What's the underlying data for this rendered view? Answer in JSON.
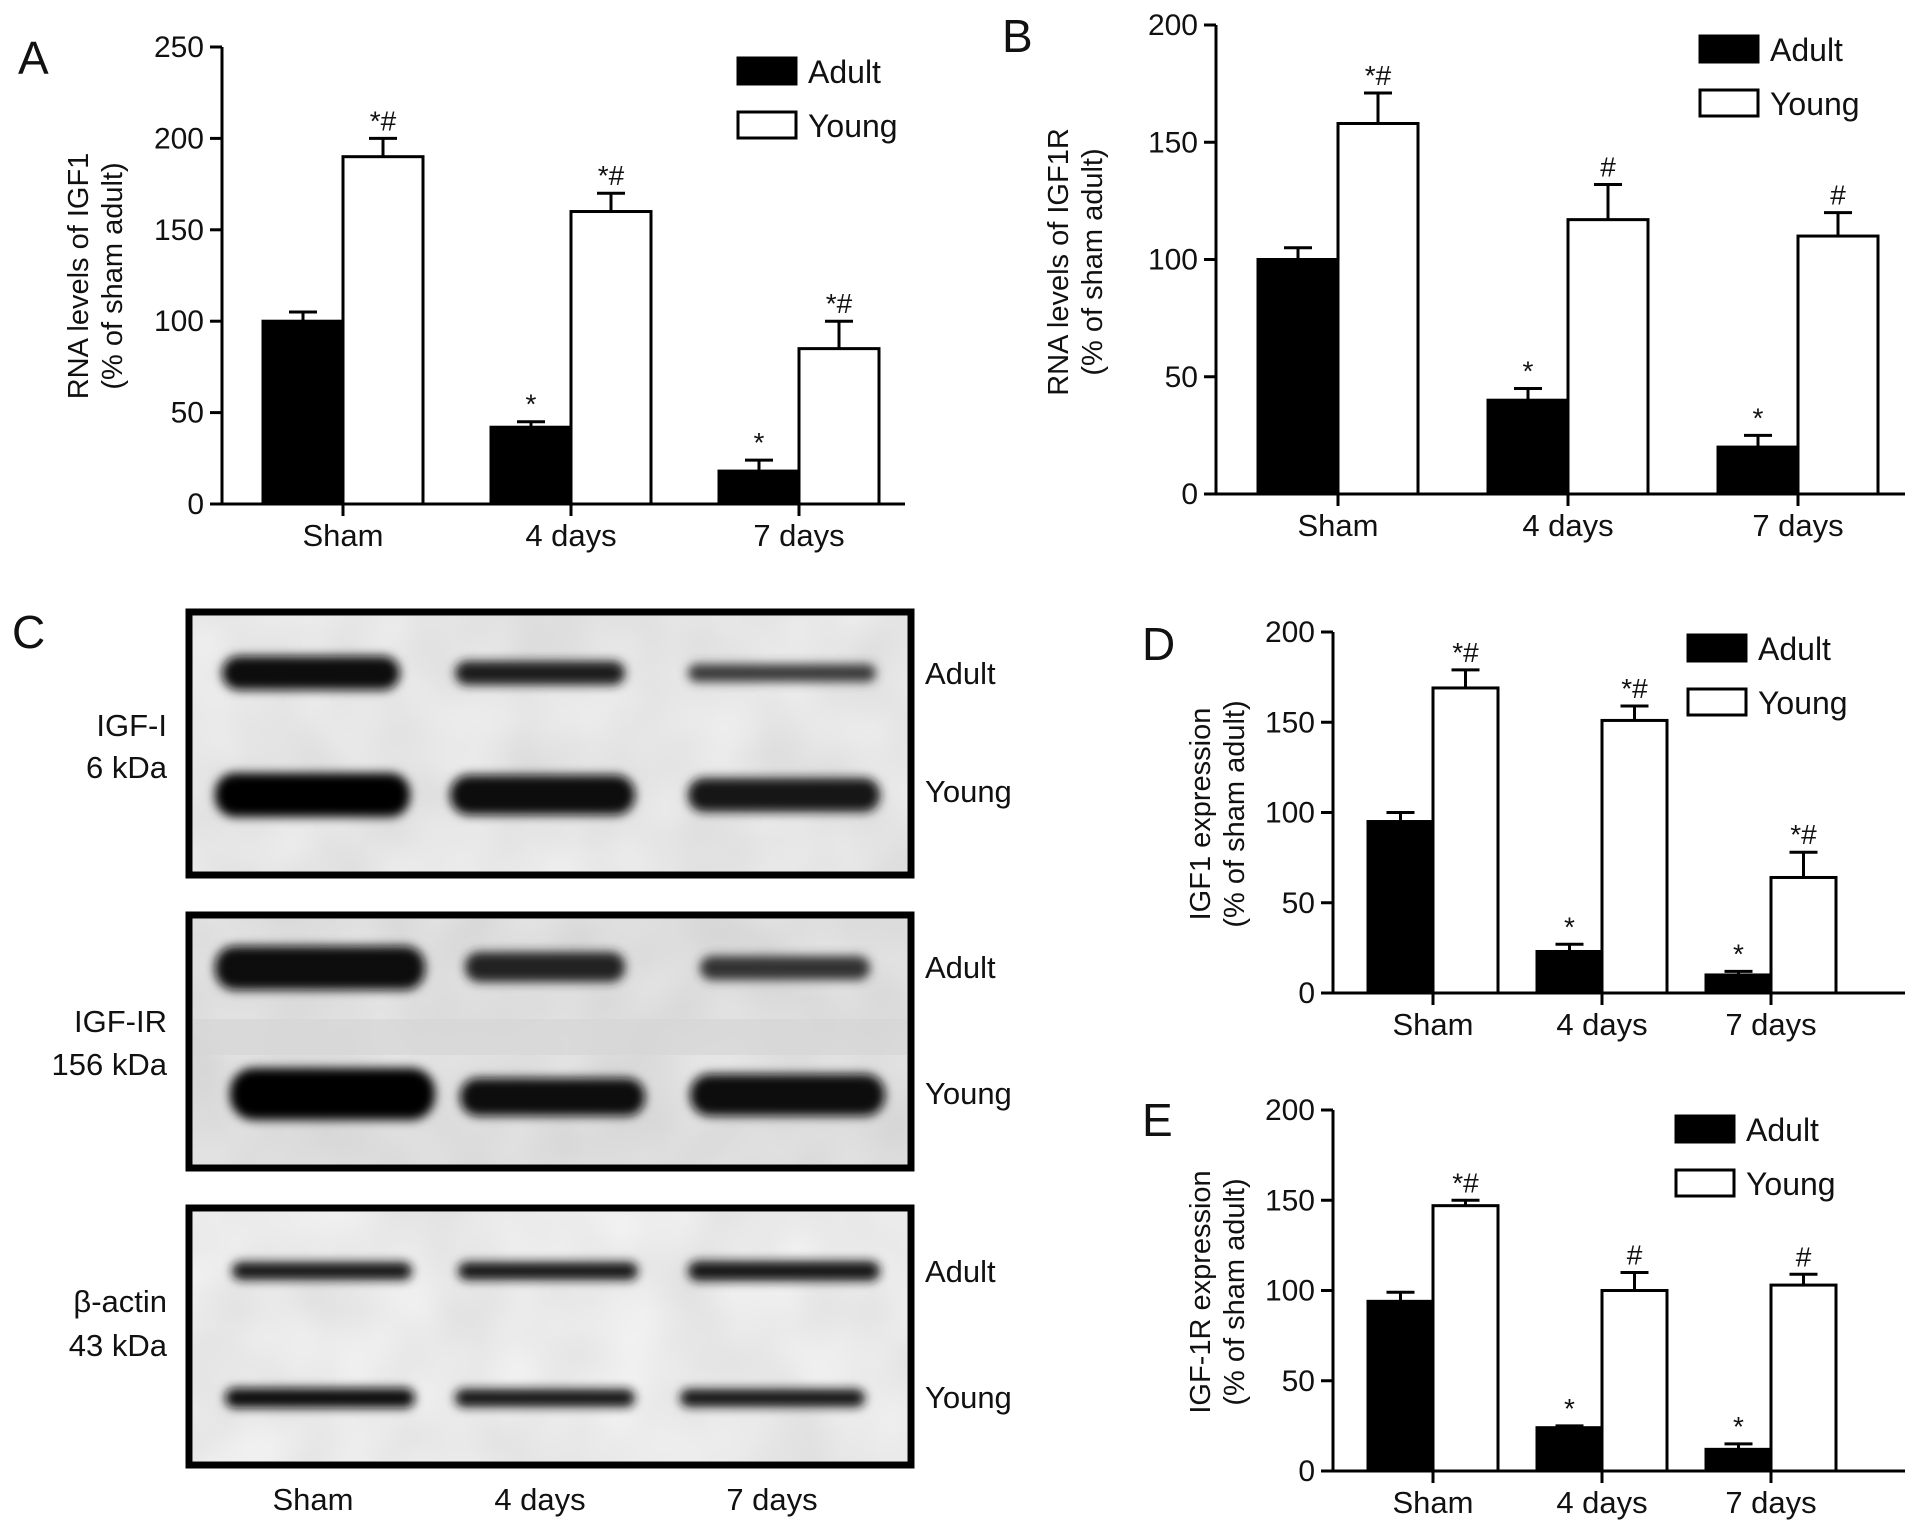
{
  "colors": {
    "adult": "#000000",
    "young": "#ffffff",
    "stroke": "#000000"
  },
  "panel_c": {
    "letter": "C",
    "groups": [
      "Sham",
      "4 days",
      "7 days"
    ],
    "blots": [
      {
        "protein": "IGF-I",
        "size": "6 kDa",
        "rows": [
          "Adult",
          "Young"
        ]
      },
      {
        "protein": "IGF-IR",
        "size": "156 kDa",
        "rows": [
          "Adult",
          "Young"
        ]
      },
      {
        "protein": "β-actin",
        "size": "43 kDa",
        "rows": [
          "Adult",
          "Young"
        ]
      }
    ]
  },
  "chart_data": [
    {
      "panel": "A",
      "type": "bar",
      "categories": [
        "Sham",
        "4 days",
        "7 days"
      ],
      "ylabel": [
        "RNA levels of IGF1",
        "(% of sham adult)"
      ],
      "ylim": [
        0,
        250
      ],
      "yticks": [
        0,
        50,
        100,
        150,
        200,
        250
      ],
      "legend_position": "top-right",
      "series": [
        {
          "name": "Adult",
          "color": "#000000",
          "values": [
            100,
            42,
            18
          ],
          "errors": [
            5,
            3,
            6
          ],
          "sig": [
            "",
            "*",
            "*"
          ]
        },
        {
          "name": "Young",
          "color": "#ffffff",
          "values": [
            190,
            160,
            85
          ],
          "errors": [
            10,
            10,
            15
          ],
          "sig": [
            "*#",
            "*#",
            "*#"
          ]
        }
      ]
    },
    {
      "panel": "B",
      "type": "bar",
      "categories": [
        "Sham",
        "4 days",
        "7 days"
      ],
      "ylabel": [
        "RNA levels of IGF1R",
        "(% of sham adult)"
      ],
      "ylim": [
        0,
        200
      ],
      "yticks": [
        0,
        50,
        100,
        150,
        200
      ],
      "legend_position": "top-right",
      "series": [
        {
          "name": "Adult",
          "color": "#000000",
          "values": [
            100,
            40,
            20
          ],
          "errors": [
            5,
            5,
            5
          ],
          "sig": [
            "",
            "*",
            "*"
          ]
        },
        {
          "name": "Young",
          "color": "#ffffff",
          "values": [
            158,
            117,
            110
          ],
          "errors": [
            13,
            15,
            10
          ],
          "sig": [
            "*#",
            "#",
            "#"
          ]
        }
      ]
    },
    {
      "panel": "D",
      "type": "bar",
      "categories": [
        "Sham",
        "4 days",
        "7 days"
      ],
      "ylabel": [
        "IGF1 expression",
        "(% of sham adult)"
      ],
      "ylim": [
        0,
        200
      ],
      "yticks": [
        0,
        50,
        100,
        150,
        200
      ],
      "legend_position": "top-right",
      "series": [
        {
          "name": "Adult",
          "color": "#000000",
          "values": [
            95,
            23,
            10
          ],
          "errors": [
            5,
            4,
            2
          ],
          "sig": [
            "",
            "*",
            "*"
          ]
        },
        {
          "name": "Young",
          "color": "#ffffff",
          "values": [
            169,
            151,
            64
          ],
          "errors": [
            10,
            8,
            14
          ],
          "sig": [
            "*#",
            "*#",
            "*#"
          ]
        }
      ]
    },
    {
      "panel": "E",
      "type": "bar",
      "categories": [
        "Sham",
        "4 days",
        "7 days"
      ],
      "ylabel": [
        "IGF-1R expression",
        "(% of sham adult)"
      ],
      "ylim": [
        0,
        200
      ],
      "yticks": [
        0,
        50,
        100,
        150,
        200
      ],
      "legend_position": "top-right",
      "series": [
        {
          "name": "Adult",
          "color": "#000000",
          "values": [
            94,
            24,
            12
          ],
          "errors": [
            5,
            1,
            3
          ],
          "sig": [
            "",
            "*",
            "*"
          ]
        },
        {
          "name": "Young",
          "color": "#ffffff",
          "values": [
            147,
            100,
            103
          ],
          "errors": [
            3,
            10,
            6
          ],
          "sig": [
            "*#",
            "#",
            "#"
          ]
        }
      ]
    }
  ]
}
